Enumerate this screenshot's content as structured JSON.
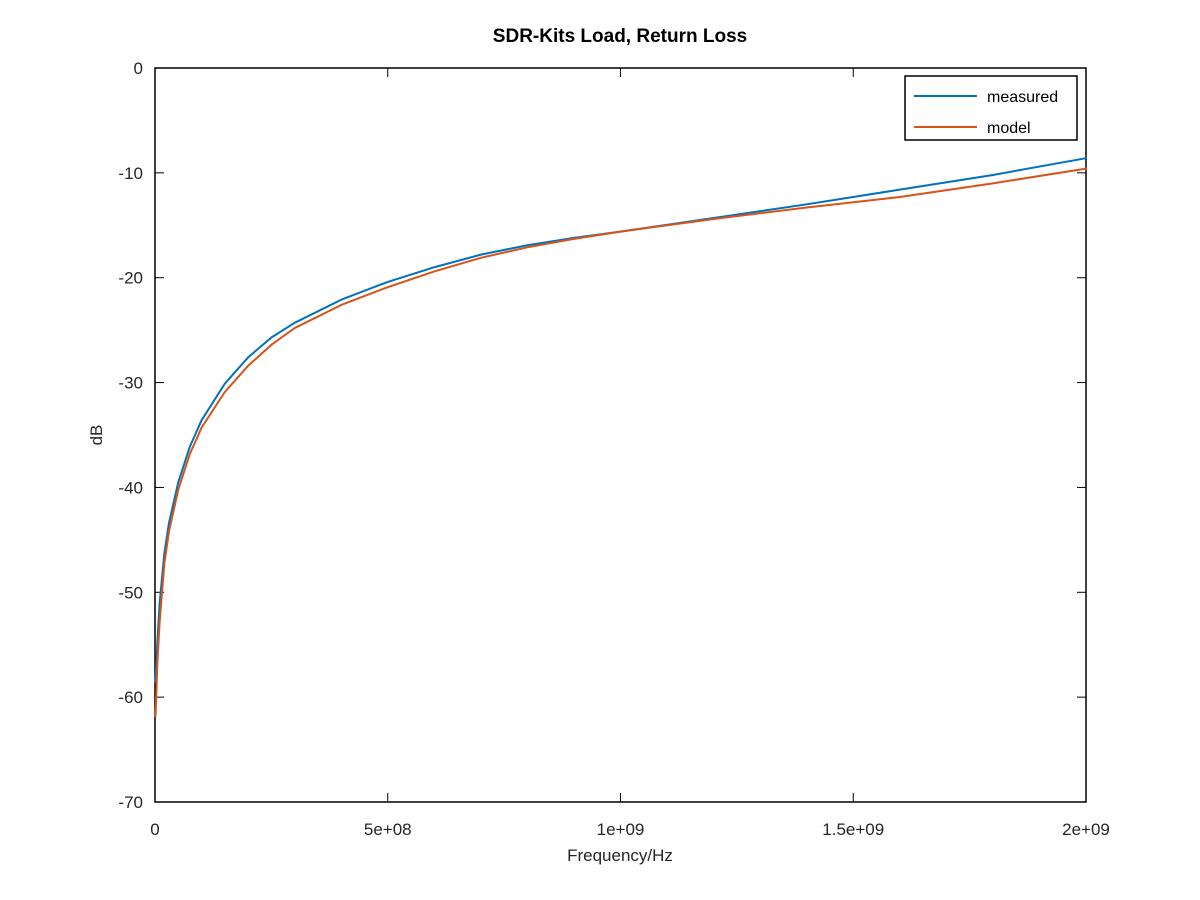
{
  "chart_data": {
    "type": "line",
    "title": "SDR-Kits Load, Return Loss",
    "xlabel": "Frequency/Hz",
    "ylabel": "dB",
    "xlim": [
      0,
      2000000000
    ],
    "ylim": [
      -70,
      0
    ],
    "x_ticks": [
      0,
      500000000,
      1000000000,
      1500000000,
      2000000000
    ],
    "x_tick_labels": [
      "0",
      "5e+08",
      "1e+09",
      "1.5e+09",
      "2e+09"
    ],
    "y_ticks": [
      0,
      -10,
      -20,
      -30,
      -40,
      -50,
      -60,
      -70
    ],
    "y_tick_labels": [
      "0",
      "-10",
      "-20",
      "-30",
      "-40",
      "-50",
      "-60",
      "-70"
    ],
    "grid": false,
    "legend_position": "top-right",
    "x": [
      1000000,
      2000000,
      5000000,
      10000000,
      20000000,
      30000000,
      50000000,
      75000000,
      100000000,
      150000000,
      200000000,
      250000000,
      300000000,
      400000000,
      500000000,
      600000000,
      700000000,
      800000000,
      900000000,
      1000000000,
      1200000000,
      1400000000,
      1600000000,
      1800000000,
      2000000000
    ],
    "series": [
      {
        "name": "measured",
        "color": "#0072bd",
        "values": [
          -58.5,
          -57.5,
          -54.8,
          -51,
          -46.3,
          -43.4,
          -39.5,
          -36.1,
          -33.6,
          -30.1,
          -27.6,
          -25.7,
          -24.3,
          -22.1,
          -20.4,
          -19.0,
          -17.8,
          -16.9,
          -16.2,
          -15.6,
          -14.3,
          -13.0,
          -11.6,
          -10.2,
          -8.6
        ]
      },
      {
        "name": "model",
        "color": "#d95319",
        "values": [
          -61.8,
          -60.8,
          -56.8,
          -52.8,
          -47.3,
          -44.2,
          -40.2,
          -36.8,
          -34.3,
          -30.9,
          -28.4,
          -26.4,
          -24.8,
          -22.6,
          -20.9,
          -19.4,
          -18.1,
          -17.1,
          -16.3,
          -15.6,
          -14.4,
          -13.3,
          -12.3,
          -11.0,
          -9.6
        ]
      }
    ]
  }
}
